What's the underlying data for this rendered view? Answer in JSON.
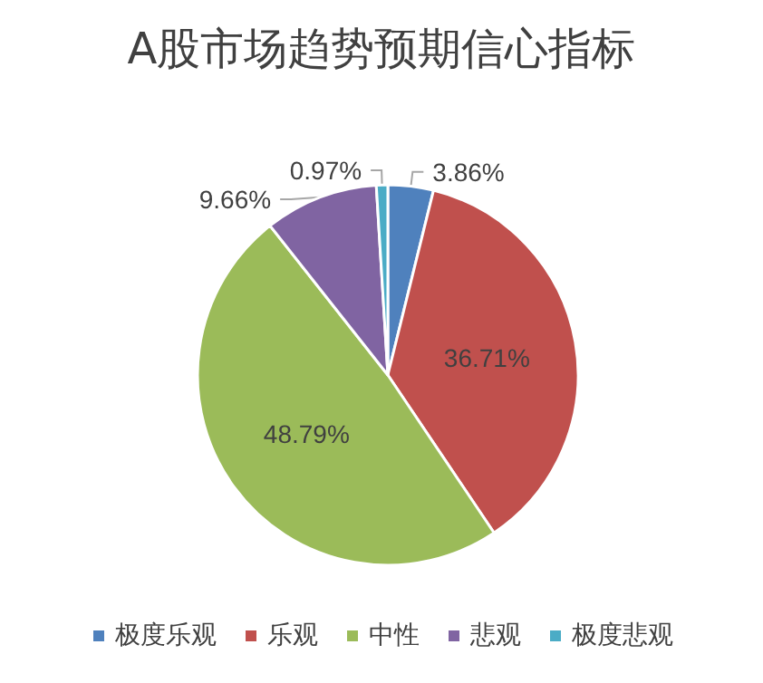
{
  "chart_data": {
    "type": "pie",
    "title": "A股市场趋势预期信心指标",
    "categories": [
      "极度乐观",
      "乐观",
      "中性",
      "悲观",
      "极度悲观"
    ],
    "values": [
      3.86,
      36.71,
      48.79,
      9.66,
      0.97
    ],
    "colors": [
      "#4f81bd",
      "#c0504d",
      "#9bbb59",
      "#8064a2",
      "#4bacc6"
    ],
    "value_labels": [
      "3.86%",
      "36.71%",
      "48.79%",
      "9.66%",
      "0.97%"
    ],
    "legend": "bottom"
  }
}
